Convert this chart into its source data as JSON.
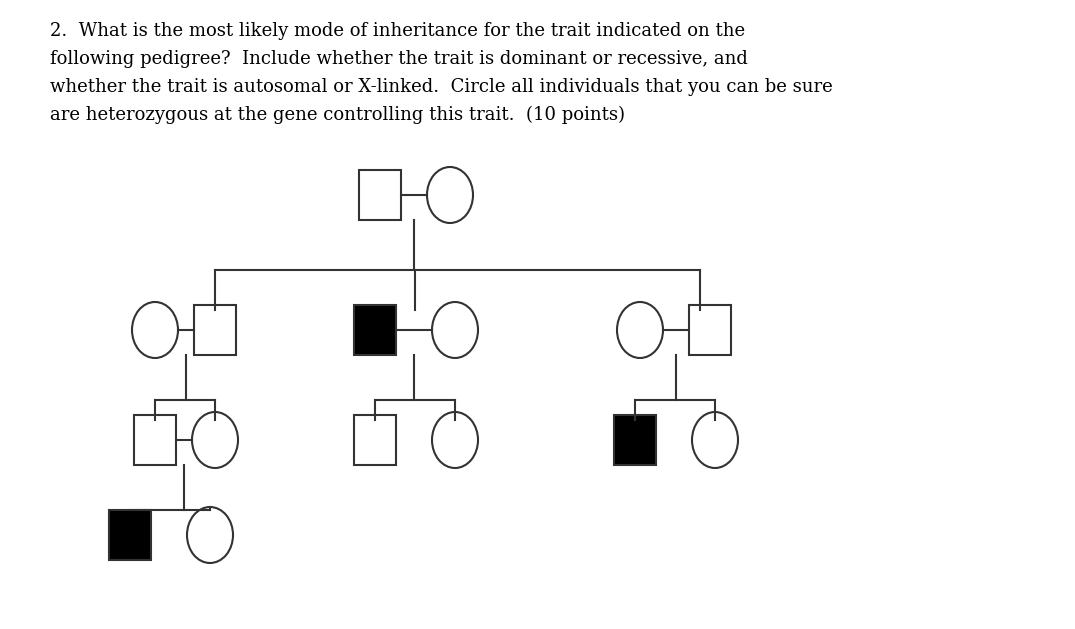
{
  "title_lines": [
    "2.  What is the most likely mode of inheritance for the trait indicated on the",
    "following pedigree?  Include whether the trait is dominant or recessive, and",
    "whether the trait is autosomal or X-linked.  Circle all individuals that you can be sure",
    "are heterozygous at the gene controlling this trait.  (10 points)"
  ],
  "background_color": "#ffffff",
  "line_color": "#333333",
  "shape_edge_color": "#333333",
  "filled_color": "#000000",
  "unfilled_color": "#ffffff",
  "title_fontsize": 13.0,
  "title_font": "DejaVu Serif"
}
